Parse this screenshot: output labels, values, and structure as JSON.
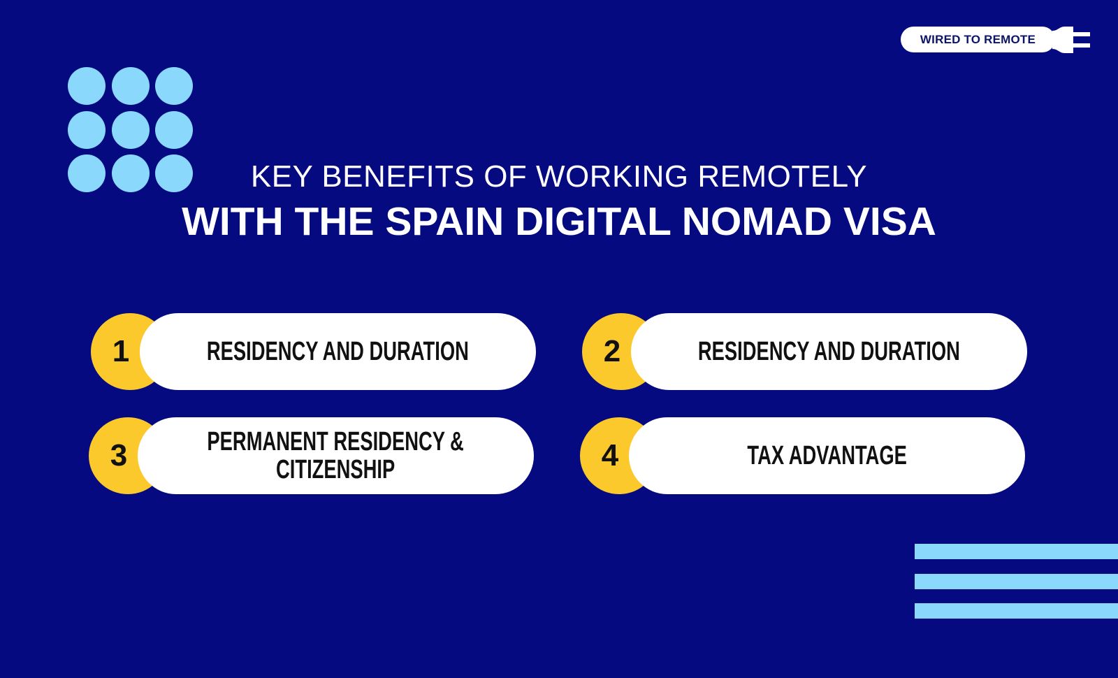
{
  "brand": {
    "label": "WIRED TO REMOTE",
    "icon": "plug-icon"
  },
  "title": {
    "line1": "KEY BENEFITS OF WORKING REMOTELY",
    "line2": "WITH THE SPAIN DIGITAL NOMAD VISA"
  },
  "benefits": [
    {
      "number": "1",
      "label": "RESIDENCY AND DURATION"
    },
    {
      "number": "2",
      "label": "RESIDENCY AND DURATION"
    },
    {
      "number": "3",
      "label": "PERMANENT RESIDENCY &\nCITIZENSHIP"
    },
    {
      "number": "4",
      "label": "TAX ADVANTAGE"
    }
  ],
  "colors": {
    "background": "#050a80",
    "accent_blue": "#8bd8fd",
    "accent_yellow": "#fbc92c",
    "white": "#ffffff"
  }
}
